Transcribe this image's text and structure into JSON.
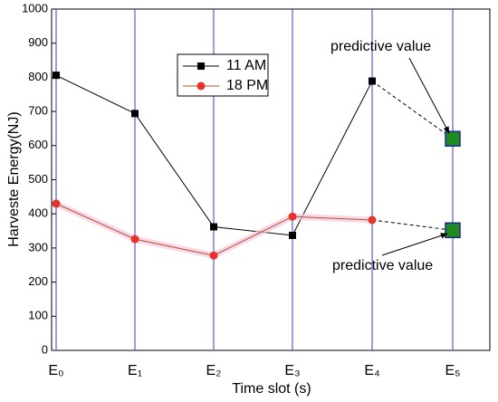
{
  "chart_data": {
    "type": "line",
    "categories": [
      "E₀",
      "E₁",
      "E₂",
      "E₃",
      "E₄",
      "E₅"
    ],
    "series": [
      {
        "name": "11 AM",
        "color": "#000000",
        "marker": "square",
        "values": [
          806,
          694,
          362,
          337,
          789,
          620
        ]
      },
      {
        "name": "18 PM",
        "color": "#b0522a",
        "marker_color": "#e8312a",
        "marker": "circle",
        "values": [
          430,
          326,
          278,
          392,
          382,
          352
        ]
      }
    ],
    "predictive_color": "#1f8a1f",
    "xgrid_color": "#3a3ad0",
    "ylabel": "Harveste Energy(NJ)",
    "xlabel": "Time slot (s)",
    "ylim": [
      0,
      1000
    ],
    "yticks": [
      0,
      100,
      200,
      300,
      400,
      500,
      600,
      700,
      800,
      900,
      1000
    ],
    "annotations": [
      "predictive value",
      "predictive value"
    ]
  }
}
